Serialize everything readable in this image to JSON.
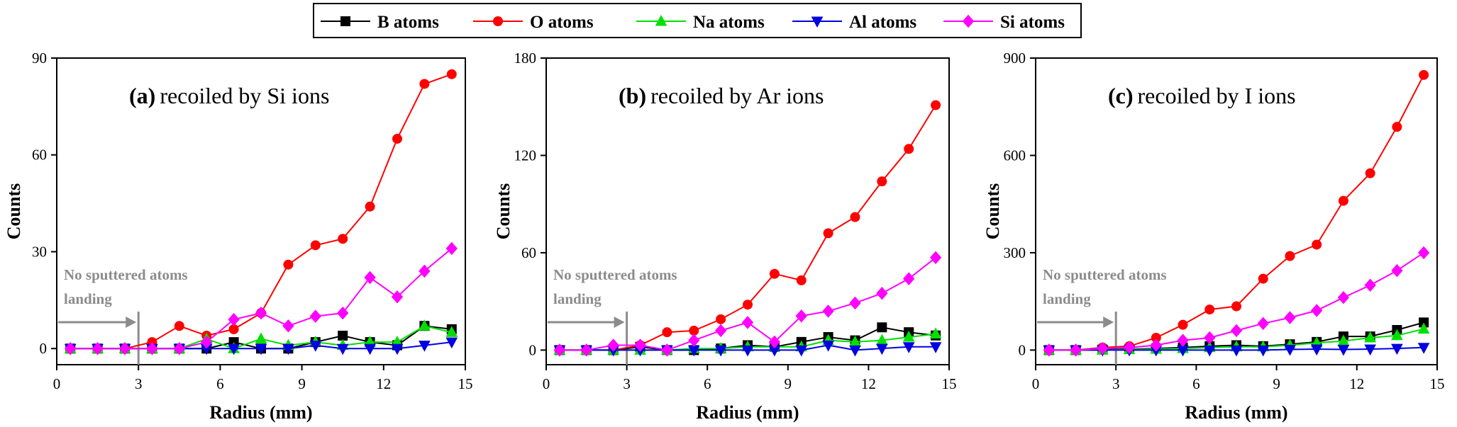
{
  "legend": {
    "entries": [
      {
        "label": "B atoms",
        "color": "#000000",
        "marker": "square"
      },
      {
        "label": "O atoms",
        "color": "#ff0000",
        "marker": "circle"
      },
      {
        "label": "Na atoms",
        "color": "#00e000",
        "marker": "triangle-up"
      },
      {
        "label": "Al atoms",
        "color": "#0000e0",
        "marker": "triangle-down"
      },
      {
        "label": "Si atoms",
        "color": "#ff00ff",
        "marker": "diamond"
      }
    ],
    "placement": "top-center"
  },
  "chart_data": [
    {
      "type": "line",
      "panel_label": "(a)",
      "title": "recoiled by Si ions",
      "xlabel": "Radius (mm)",
      "ylabel": "Counts",
      "xlim": [
        0,
        15
      ],
      "ylim": [
        -5,
        90
      ],
      "xticks": [
        0,
        3,
        6,
        9,
        12,
        15
      ],
      "yticks": [
        0,
        30,
        60,
        90
      ],
      "annotation": {
        "lines": [
          "No sputtered atoms",
          "landing"
        ],
        "arrow_to_x": 3
      },
      "x": [
        0.5,
        1.5,
        2.5,
        3.5,
        4.5,
        5.5,
        6.5,
        7.5,
        8.5,
        9.5,
        10.5,
        11.5,
        12.5,
        13.5,
        14.5
      ],
      "series": [
        {
          "name": "B atoms",
          "values": [
            0,
            0,
            0,
            0,
            0,
            0,
            2,
            0,
            0,
            2,
            4,
            2,
            1,
            7,
            6
          ]
        },
        {
          "name": "O atoms",
          "values": [
            0,
            0,
            0,
            2,
            7,
            4,
            6,
            11,
            26,
            32,
            34,
            44,
            65,
            82,
            85
          ]
        },
        {
          "name": "Na atoms",
          "values": [
            0,
            0,
            0,
            0,
            0,
            3,
            0,
            3,
            1,
            2,
            1,
            2,
            2,
            7,
            5
          ]
        },
        {
          "name": "Al atoms",
          "values": [
            0,
            0,
            0,
            0,
            0,
            0,
            0,
            0,
            0,
            1,
            0,
            0,
            0,
            1,
            2
          ]
        },
        {
          "name": "Si atoms",
          "values": [
            0,
            0,
            0,
            0,
            0,
            2,
            9,
            11,
            7,
            10,
            11,
            22,
            16,
            24,
            31
          ]
        }
      ]
    },
    {
      "type": "line",
      "panel_label": "(b)",
      "title": "recoiled by Ar ions",
      "xlabel": "Radius (mm)",
      "ylabel": "Counts",
      "xlim": [
        0,
        15
      ],
      "ylim": [
        -9,
        180
      ],
      "xticks": [
        0,
        3,
        6,
        9,
        12,
        15
      ],
      "yticks": [
        0,
        60,
        120,
        180
      ],
      "annotation": {
        "lines": [
          "No sputtered atoms",
          "landing"
        ],
        "arrow_to_x": 3
      },
      "x": [
        0.5,
        1.5,
        2.5,
        3.5,
        4.5,
        5.5,
        6.5,
        7.5,
        8.5,
        9.5,
        10.5,
        11.5,
        12.5,
        13.5,
        14.5
      ],
      "series": [
        {
          "name": "B atoms",
          "values": [
            0,
            0,
            0,
            2,
            0,
            0,
            1,
            3,
            2,
            5,
            8,
            6,
            14,
            11,
            9
          ]
        },
        {
          "name": "O atoms",
          "values": [
            0,
            0,
            0,
            3,
            11,
            12,
            19,
            28,
            47,
            43,
            72,
            82,
            104,
            124,
            151
          ]
        },
        {
          "name": "Na atoms",
          "values": [
            0,
            0,
            0,
            0,
            0,
            1,
            1,
            2,
            2,
            2,
            6,
            5,
            6,
            8,
            10
          ]
        },
        {
          "name": "Al atoms",
          "values": [
            0,
            0,
            0,
            0,
            0,
            0,
            0,
            0,
            0,
            0,
            3,
            0,
            1,
            2,
            2
          ]
        },
        {
          "name": "Si atoms",
          "values": [
            0,
            0,
            3,
            3,
            0,
            6,
            12,
            17,
            5,
            21,
            24,
            29,
            35,
            44,
            57
          ]
        }
      ]
    },
    {
      "type": "line",
      "panel_label": "(c)",
      "title": "recoiled by I ions",
      "xlabel": "Radius (mm)",
      "ylabel": "Counts",
      "xlim": [
        0,
        15
      ],
      "ylim": [
        -45,
        900
      ],
      "xticks": [
        0,
        3,
        6,
        9,
        12,
        15
      ],
      "yticks": [
        0,
        300,
        600,
        900
      ],
      "annotation": {
        "lines": [
          "No sputtered atoms",
          "landing"
        ],
        "arrow_to_x": 3
      },
      "x": [
        0.5,
        1.5,
        2.5,
        3.5,
        4.5,
        5.5,
        6.5,
        7.5,
        8.5,
        9.5,
        10.5,
        11.5,
        12.5,
        13.5,
        14.5
      ],
      "series": [
        {
          "name": "B atoms",
          "values": [
            0,
            0,
            2,
            3,
            5,
            8,
            12,
            15,
            12,
            18,
            25,
            42,
            42,
            62,
            85
          ]
        },
        {
          "name": "O atoms",
          "values": [
            0,
            0,
            8,
            12,
            38,
            78,
            125,
            135,
            220,
            290,
            325,
            460,
            545,
            688,
            848
          ]
        },
        {
          "name": "Na atoms",
          "values": [
            0,
            0,
            0,
            2,
            3,
            5,
            8,
            10,
            10,
            15,
            22,
            28,
            38,
            45,
            65
          ]
        },
        {
          "name": "Al atoms",
          "values": [
            0,
            0,
            0,
            0,
            0,
            0,
            0,
            0,
            0,
            2,
            3,
            2,
            3,
            5,
            8
          ]
        },
        {
          "name": "Si atoms",
          "values": [
            0,
            0,
            5,
            8,
            15,
            30,
            38,
            60,
            82,
            100,
            122,
            162,
            200,
            245,
            300
          ]
        }
      ]
    }
  ]
}
